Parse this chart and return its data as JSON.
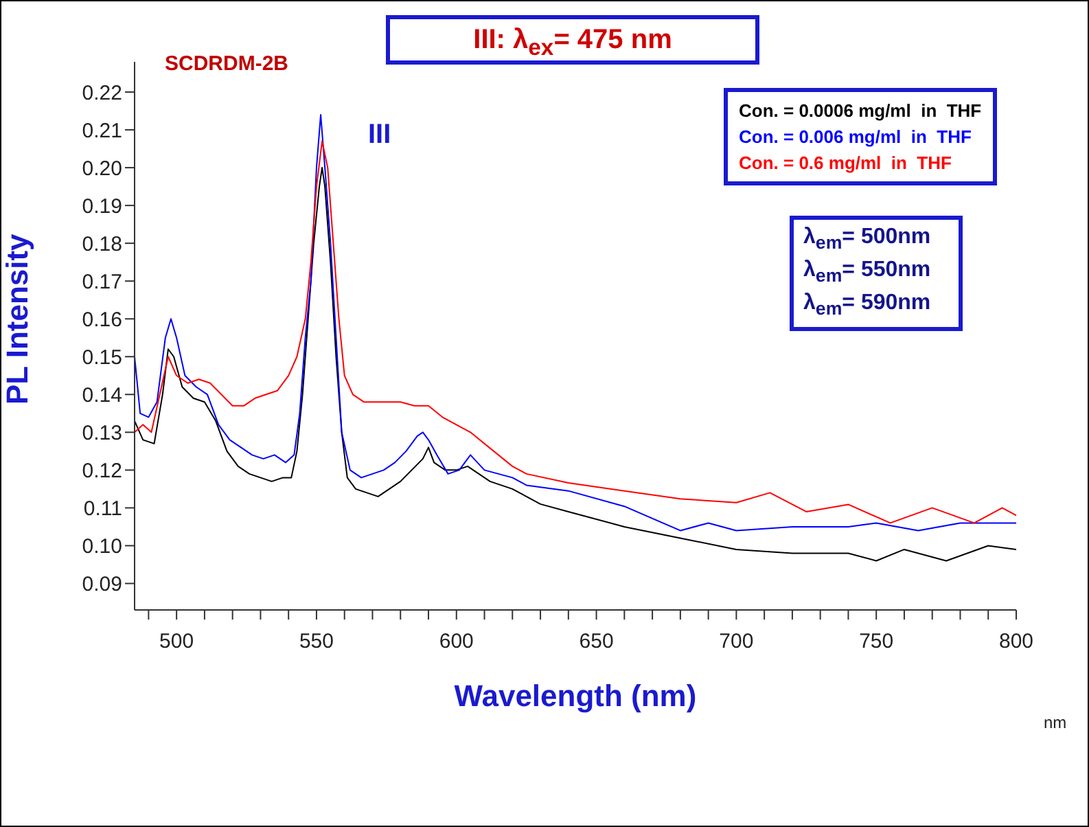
{
  "chart_data": {
    "type": "line",
    "title": "III: λ$_{ex}$= 475 nm",
    "xlabel": "Wavelength (nm)",
    "ylabel": "PL Intensity",
    "annotations": [
      "SCDRDM-2B",
      "III",
      "λ$_{em}$= 500nm",
      "λ$_{em}$= 550nm",
      "λ$_{em}$= 590nm",
      "nm"
    ],
    "xlim": [
      485,
      800
    ],
    "xticks": [
      {
        "value": 490,
        "label": null
      },
      500,
      {
        "value": 510,
        "label": null
      },
      {
        "value": 520,
        "label": null
      },
      {
        "value": 530,
        "label": null
      },
      {
        "value": 540,
        "label": null
      },
      550,
      {
        "value": 560,
        "label": null
      },
      {
        "value": 570,
        "label": null
      },
      {
        "value": 580,
        "label": null
      },
      {
        "value": 590,
        "label": null
      },
      600,
      {
        "value": 610,
        "label": null
      },
      {
        "value": 620,
        "label": null
      },
      {
        "value": 630,
        "label": null
      },
      {
        "value": 640,
        "label": null
      },
      650,
      {
        "value": 660,
        "label": null
      },
      {
        "value": 670,
        "label": null
      },
      {
        "value": 680,
        "label": null
      },
      {
        "value": 690,
        "label": null
      },
      700,
      {
        "value": 710,
        "label": null
      },
      {
        "value": 720,
        "label": null
      },
      {
        "value": 730,
        "label": null
      },
      {
        "value": 740,
        "label": null
      },
      750,
      {
        "value": 760,
        "label": null
      },
      {
        "value": 770,
        "label": null
      },
      {
        "value": 780,
        "label": null
      },
      {
        "value": 790,
        "label": null
      },
      800
    ],
    "ylim": [
      0.083,
      0.228
    ],
    "yticks": [
      0.09,
      {
        "value": 0.1,
        "label": "0.10"
      },
      0.11,
      0.12,
      0.13,
      0.14,
      0.15,
      0.16,
      0.17,
      0.18,
      0.19,
      {
        "value": 0.2,
        "label": "0.20"
      },
      0.21,
      0.22
    ],
    "grid": false,
    "legend": "top right",
    "marker": "none",
    "line_style": "solid",
    "series": [
      {
        "name": "Con. = 0.0006 mg/ml  in  THF",
        "color": "#000000",
        "x": [
          485,
          488,
          492,
          495,
          497,
          499,
          502,
          506,
          510,
          514,
          518,
          522,
          526,
          530,
          534,
          538,
          541,
          543,
          545,
          547,
          549,
          551,
          552,
          553,
          555,
          557,
          559,
          561,
          564,
          568,
          572,
          576,
          580,
          584,
          588,
          590,
          592,
          596,
          600,
          604,
          608,
          612,
          616,
          620,
          625,
          630,
          640,
          660,
          680,
          700,
          720,
          740,
          750,
          760,
          775,
          790,
          800
        ],
        "values": [
          0.133,
          0.128,
          0.127,
          0.14,
          0.152,
          0.15,
          0.142,
          0.139,
          0.138,
          0.133,
          0.125,
          0.121,
          0.119,
          0.118,
          0.117,
          0.118,
          0.118,
          0.125,
          0.14,
          0.16,
          0.18,
          0.195,
          0.2,
          0.195,
          0.175,
          0.15,
          0.13,
          0.118,
          0.115,
          0.114,
          0.113,
          0.115,
          0.117,
          0.12,
          0.123,
          0.126,
          0.122,
          0.12,
          0.12,
          0.121,
          0.119,
          0.117,
          0.116,
          0.115,
          0.113,
          0.111,
          0.109,
          0.105,
          0.102,
          0.099,
          0.098,
          0.098,
          0.096,
          0.099,
          0.096,
          0.1,
          0.099
        ]
      },
      {
        "name": "Con. = 0.006 mg/ml  in  THF",
        "color": "#0000ff",
        "x": [
          485,
          487,
          490,
          493,
          496,
          498,
          500,
          503,
          507,
          511,
          515,
          519,
          523,
          527,
          531,
          535,
          539,
          542,
          544,
          546,
          548,
          550,
          551.5,
          553,
          555,
          557,
          559,
          562,
          566,
          570,
          574,
          578,
          582,
          586,
          588,
          590,
          593,
          597,
          601,
          605,
          610,
          615,
          620,
          625,
          640,
          660,
          680,
          690,
          700,
          720,
          740,
          750,
          765,
          780,
          800
        ],
        "values": [
          0.15,
          0.135,
          0.134,
          0.138,
          0.155,
          0.16,
          0.155,
          0.145,
          0.142,
          0.14,
          0.132,
          0.128,
          0.126,
          0.124,
          0.123,
          0.124,
          0.122,
          0.124,
          0.135,
          0.155,
          0.17,
          0.2,
          0.214,
          0.2,
          0.18,
          0.155,
          0.13,
          0.12,
          0.118,
          0.119,
          0.12,
          0.122,
          0.125,
          0.129,
          0.13,
          0.128,
          0.124,
          0.119,
          0.12,
          0.124,
          0.12,
          0.119,
          0.118,
          0.116,
          0.1145,
          0.1104,
          0.104,
          0.106,
          0.104,
          0.105,
          0.105,
          0.106,
          0.104,
          0.106,
          0.106
        ]
      },
      {
        "name": "Con. = 0.6 mg/ml  in  THF",
        "color": "#ff0000",
        "x": [
          485,
          488,
          491,
          494,
          497,
          500,
          504,
          508,
          512,
          516,
          520,
          524,
          528,
          532,
          536,
          540,
          543,
          546,
          548,
          550,
          552,
          554,
          556,
          558,
          560,
          563,
          567,
          571,
          575,
          580,
          585,
          590,
          595,
          600,
          605,
          610,
          615,
          620,
          625,
          640,
          660,
          680,
          700,
          712,
          725,
          740,
          755,
          770,
          785,
          795,
          800
        ],
        "values": [
          0.13,
          0.132,
          0.13,
          0.14,
          0.15,
          0.145,
          0.143,
          0.144,
          0.143,
          0.14,
          0.137,
          0.137,
          0.139,
          0.14,
          0.141,
          0.145,
          0.15,
          0.16,
          0.175,
          0.195,
          0.207,
          0.2,
          0.18,
          0.16,
          0.145,
          0.14,
          0.138,
          0.138,
          0.138,
          0.138,
          0.137,
          0.137,
          0.134,
          0.132,
          0.13,
          0.127,
          0.124,
          0.121,
          0.119,
          0.1166,
          0.1145,
          0.1124,
          0.1114,
          0.114,
          0.109,
          0.1109,
          0.106,
          0.11,
          0.106,
          0.11,
          0.108
        ]
      }
    ]
  }
}
